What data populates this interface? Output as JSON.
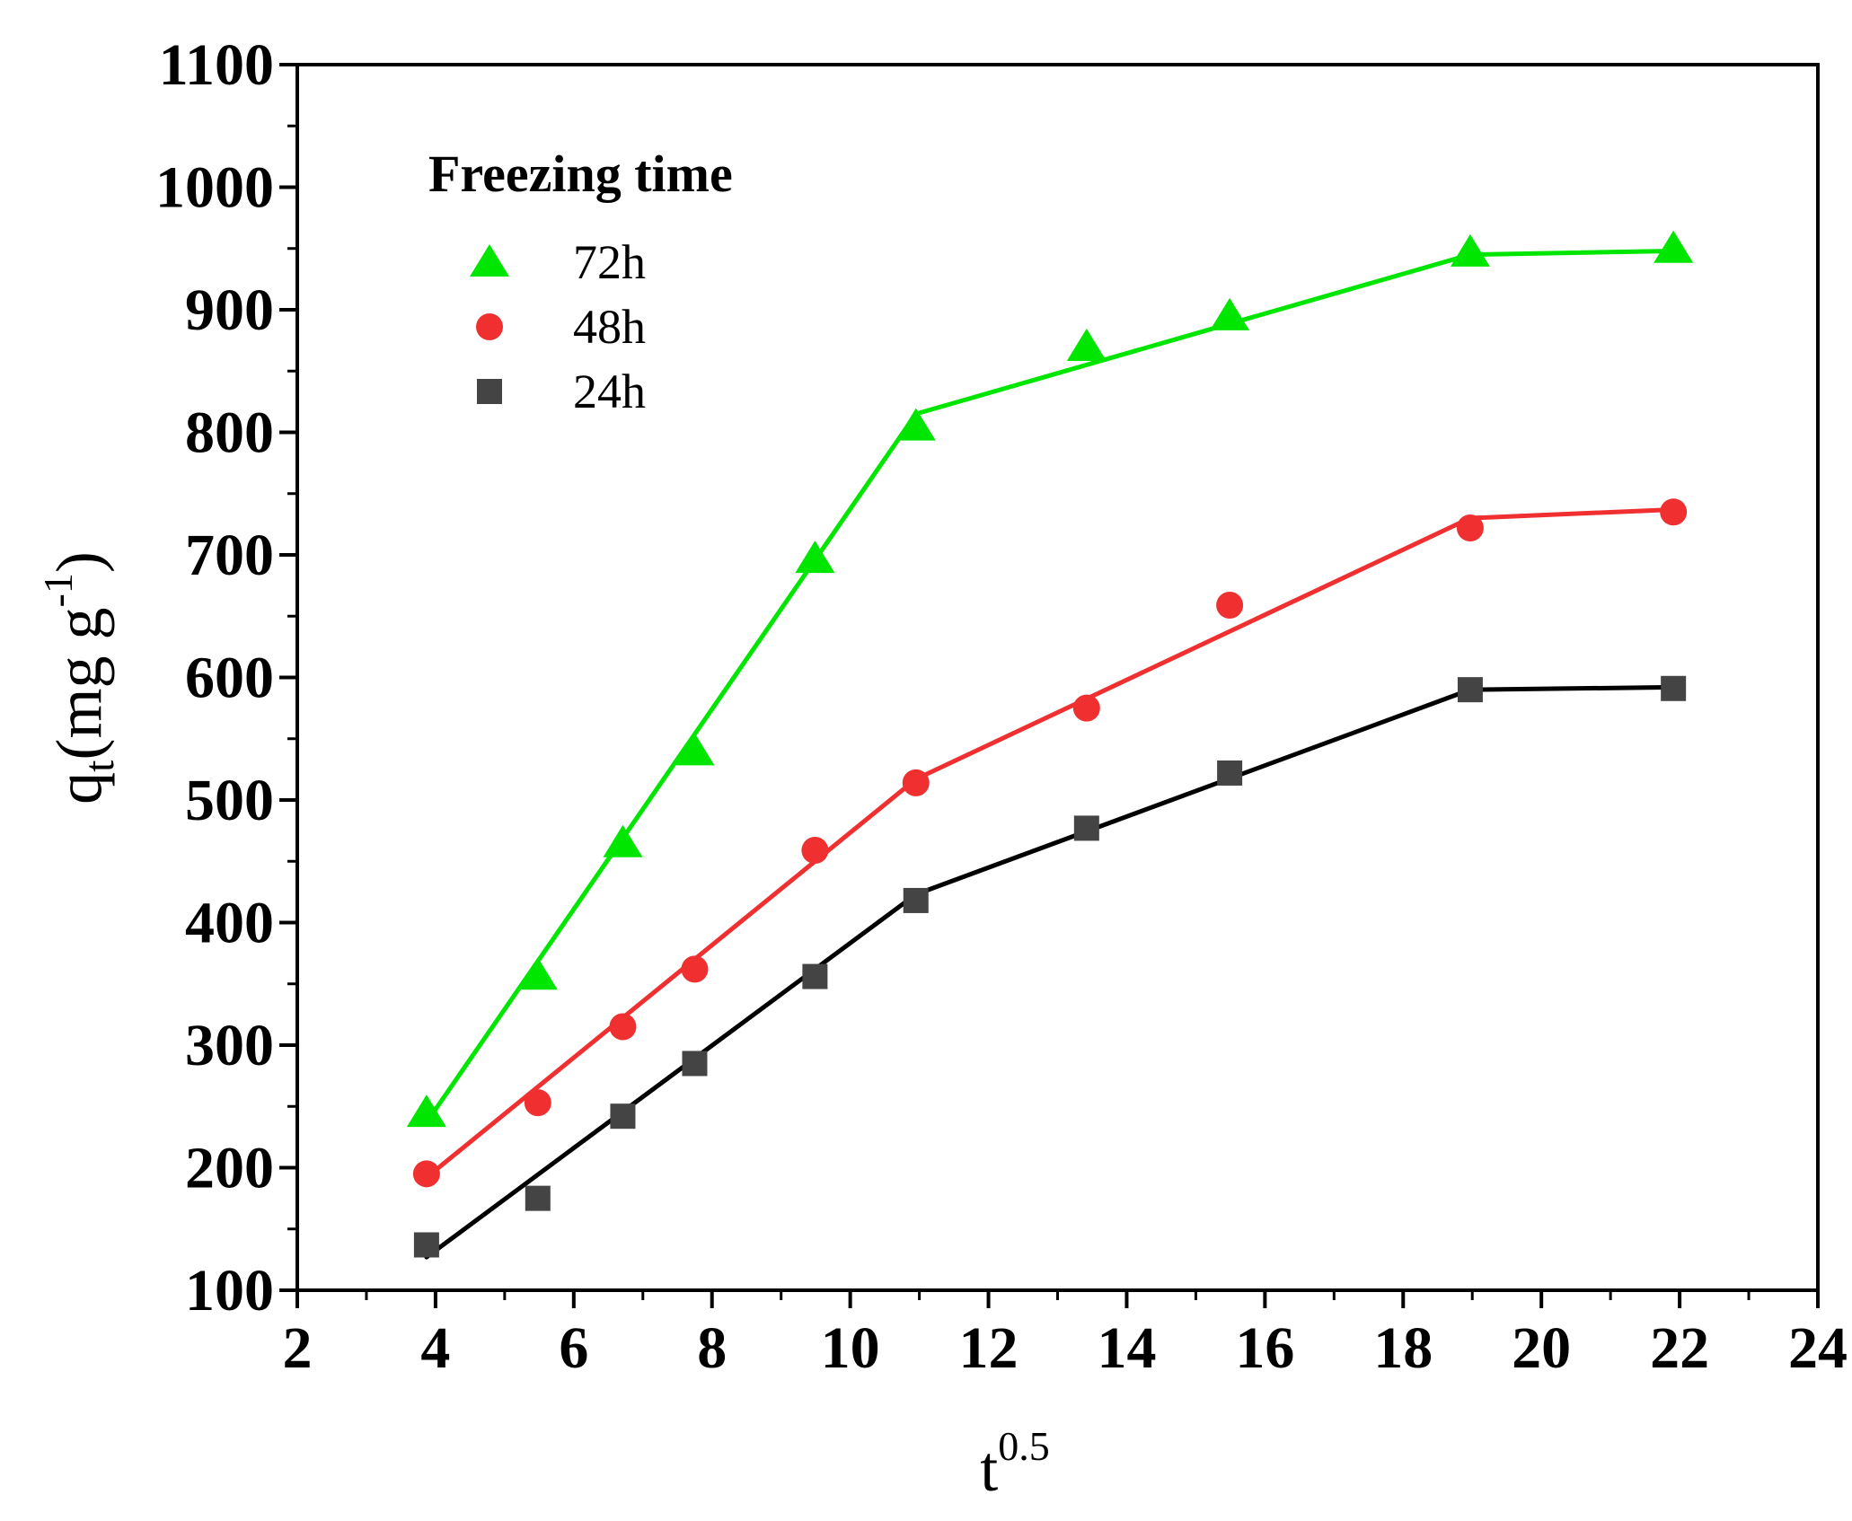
{
  "chart_data": {
    "type": "scatter",
    "title": "",
    "xlabel": {
      "base": "t",
      "sup": "0.5"
    },
    "ylabel": {
      "base": "q",
      "sub": "t",
      "unit": "(mg g",
      "unit_sup": "-1",
      "close": ")"
    },
    "xlim": [
      2,
      24
    ],
    "ylim": [
      100,
      1100
    ],
    "xticks": [
      2,
      4,
      6,
      8,
      10,
      12,
      14,
      16,
      18,
      20,
      22,
      24
    ],
    "yticks": [
      100,
      200,
      300,
      400,
      500,
      600,
      700,
      800,
      900,
      1000,
      1100
    ],
    "legend": {
      "title": "Freezing time",
      "placement": "top-left"
    },
    "series": [
      {
        "name": "72h",
        "marker": "triangle",
        "color": "#00e600",
        "x": [
          3.87,
          5.48,
          6.71,
          7.75,
          9.49,
          10.95,
          13.42,
          15.49,
          18.97,
          21.91
        ],
        "y": [
          245,
          357,
          465,
          540,
          697,
          805,
          870,
          895,
          947,
          950
        ],
        "fit_segments": [
          {
            "x": [
              3.87,
              10.95
            ],
            "y": [
              237,
              815
            ]
          },
          {
            "x": [
              10.95,
              18.97
            ],
            "y": [
              815,
              945
            ]
          },
          {
            "x": [
              18.97,
              21.91
            ],
            "y": [
              945,
              948
            ]
          }
        ]
      },
      {
        "name": "48h",
        "marker": "circle",
        "color": "#f03030",
        "x": [
          3.87,
          5.48,
          6.71,
          7.75,
          9.49,
          10.95,
          13.42,
          15.49,
          18.97,
          21.91
        ],
        "y": [
          195,
          253,
          315,
          362,
          459,
          514,
          575,
          659,
          722,
          735
        ],
        "fit_segments": [
          {
            "x": [
              3.87,
              10.95
            ],
            "y": [
              192,
              517
            ]
          },
          {
            "x": [
              10.95,
              18.97
            ],
            "y": [
              517,
              730
            ]
          },
          {
            "x": [
              18.97,
              21.91
            ],
            "y": [
              730,
              737
            ]
          }
        ]
      },
      {
        "name": "24h",
        "marker": "square",
        "color": "#444444",
        "x": [
          3.87,
          5.48,
          6.71,
          7.75,
          9.49,
          10.95,
          13.42,
          15.49,
          18.97,
          21.91
        ],
        "y": [
          137,
          175,
          242,
          285,
          356,
          418,
          477,
          522,
          590,
          591
        ],
        "fit_segments": [
          {
            "x": [
              3.87,
              10.95
            ],
            "y": [
              127,
              423
            ]
          },
          {
            "x": [
              10.95,
              18.97
            ],
            "y": [
              423,
              590
            ]
          },
          {
            "x": [
              18.97,
              21.91
            ],
            "y": [
              590,
              592
            ]
          }
        ],
        "fit_color": "#000000"
      }
    ]
  }
}
